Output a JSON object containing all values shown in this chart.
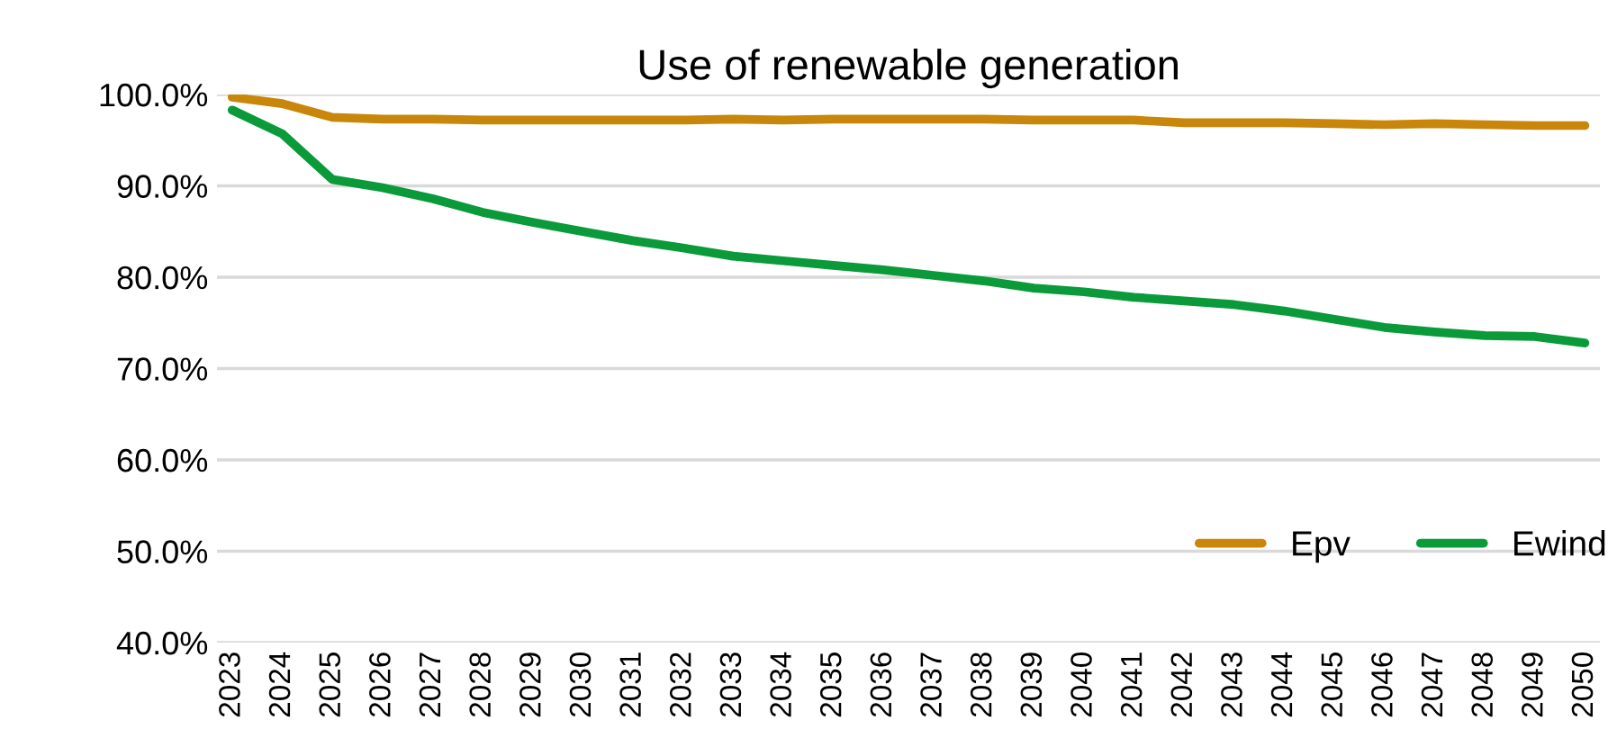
{
  "chart_data": {
    "type": "line",
    "title": "Use of renewable generation",
    "categories": [
      "2023",
      "2024",
      "2025",
      "2026",
      "2027",
      "2028",
      "2029",
      "2030",
      "2031",
      "2032",
      "2033",
      "2034",
      "2035",
      "2036",
      "2037",
      "2038",
      "2039",
      "2040",
      "2041",
      "2042",
      "2043",
      "2044",
      "2045",
      "2046",
      "2047",
      "2048",
      "2049",
      "2050"
    ],
    "series": [
      {
        "name": "Epv",
        "color": "#c8860a",
        "values": [
          99.7,
          99.0,
          97.5,
          97.3,
          97.3,
          97.2,
          97.2,
          97.2,
          97.2,
          97.2,
          97.3,
          97.2,
          97.3,
          97.3,
          97.3,
          97.3,
          97.2,
          97.2,
          97.2,
          96.9,
          96.9,
          96.9,
          96.8,
          96.7,
          96.8,
          96.7,
          96.6,
          96.6
        ]
      },
      {
        "name": "Ewind",
        "color": "#0a9a3a",
        "values": [
          98.3,
          95.7,
          90.7,
          89.8,
          88.6,
          87.1,
          86.0,
          85.0,
          84.0,
          83.2,
          82.3,
          81.8,
          81.3,
          80.8,
          80.2,
          79.6,
          78.8,
          78.4,
          77.8,
          77.4,
          77.0,
          76.3,
          75.4,
          74.5,
          74.0,
          73.6,
          73.5,
          72.8
        ]
      }
    ],
    "ylim": [
      40,
      100
    ],
    "yticks": [
      {
        "value": 40,
        "label": "40.0%"
      },
      {
        "value": 50,
        "label": "50.0%"
      },
      {
        "value": 60,
        "label": "60.0%"
      },
      {
        "value": 70,
        "label": "70.0%"
      },
      {
        "value": 80,
        "label": "80.0%"
      },
      {
        "value": 90,
        "label": "90.0%"
      },
      {
        "value": 100,
        "label": "100.0%"
      }
    ],
    "grid": "y",
    "legend": "bottom right",
    "line_style": "solid",
    "marker": "none"
  }
}
